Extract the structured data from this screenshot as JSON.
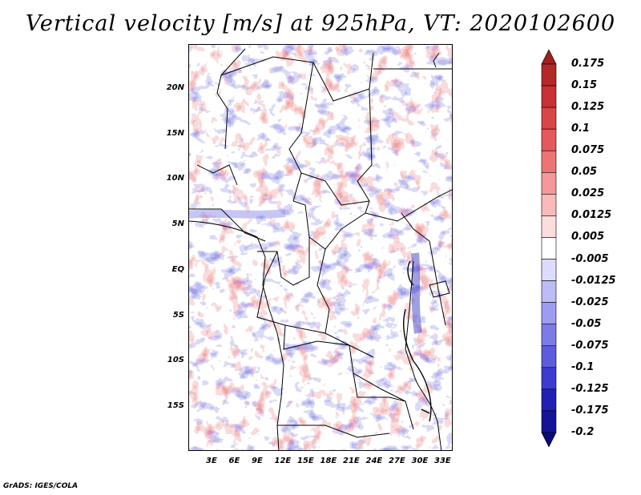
{
  "title": "Vertical velocity [m/s] at 925hPa, VT: 2020102600",
  "credit": "GrADS: IGES/COLA",
  "map": {
    "lon_labels": [
      "3E",
      "6E",
      "9E",
      "12E",
      "15E",
      "18E",
      "21E",
      "24E",
      "27E",
      "30E",
      "33E"
    ],
    "lat_labels": [
      "20N",
      "15N",
      "10N",
      "5N",
      "EQ",
      "5S",
      "10S",
      "15S"
    ],
    "field": "vertical velocity",
    "units": "m/s",
    "level": "925hPa",
    "valid_time": "2020102600"
  },
  "colorbar": {
    "labels": [
      "0.175",
      "0.15",
      "0.125",
      "0.1",
      "0.075",
      "0.05",
      "0.025",
      "0.0125",
      "0.005",
      "-0.005",
      "-0.0125",
      "-0.025",
      "-0.05",
      "-0.075",
      "-0.1",
      "-0.125",
      "-0.175",
      "-0.2"
    ],
    "colors": [
      "#a01e1e",
      "#b42828",
      "#c83232",
      "#d84646",
      "#e45a5a",
      "#ee7474",
      "#f49898",
      "#f8baba",
      "#fcdcdc",
      "#ffffff",
      "#dcdcfc",
      "#bcbcf6",
      "#9c9cf0",
      "#7c7ce6",
      "#5c5cdc",
      "#3c3cd0",
      "#2020b4",
      "#141496",
      "#0a0a78"
    ],
    "extend": "both"
  }
}
